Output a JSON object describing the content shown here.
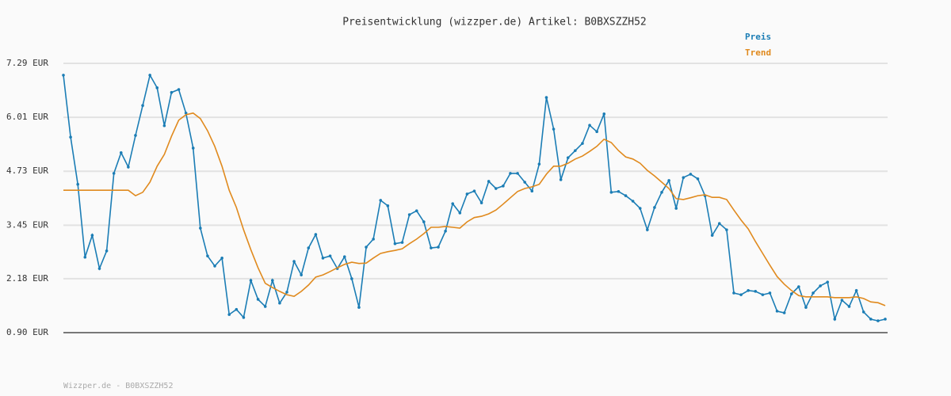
{
  "chart_data": {
    "type": "line",
    "title": "Preisentwicklung (wizzper.de) Artikel: B0BXSZZH52",
    "footer": "Wizzper.de - B0BXSZZH52",
    "ylim": [
      0.9,
      7.29
    ],
    "yticks": [
      {
        "value": 0.9,
        "label": "0.90 EUR"
      },
      {
        "value": 2.18,
        "label": "2.18 EUR"
      },
      {
        "value": 3.45,
        "label": "3.45 EUR"
      },
      {
        "value": 4.73,
        "label": "4.73 EUR"
      },
      {
        "value": 6.01,
        "label": "6.01 EUR"
      },
      {
        "value": 7.29,
        "label": "7.29 EUR"
      }
    ],
    "grid": true,
    "legend": "top-right",
    "series": [
      {
        "name": "Preis",
        "color": "#1b7db5",
        "markers": true,
        "values": [
          7.01,
          5.54,
          4.42,
          2.69,
          3.21,
          2.42,
          2.84,
          4.68,
          5.17,
          4.83,
          5.58,
          6.29,
          7.01,
          6.71,
          5.81,
          6.6,
          6.67,
          6.11,
          5.28,
          3.38,
          2.72,
          2.48,
          2.67,
          1.33,
          1.45,
          1.26,
          2.14,
          1.69,
          1.52,
          2.14,
          1.6,
          1.86,
          2.59,
          2.27,
          2.91,
          3.23,
          2.67,
          2.72,
          2.42,
          2.7,
          2.18,
          1.5,
          2.93,
          3.12,
          4.04,
          3.91,
          3.01,
          3.04,
          3.7,
          3.79,
          3.53,
          2.91,
          2.93,
          3.31,
          3.96,
          3.74,
          4.19,
          4.26,
          3.98,
          4.49,
          4.32,
          4.38,
          4.68,
          4.68,
          4.47,
          4.26,
          4.9,
          6.48,
          5.73,
          4.53,
          5.05,
          5.22,
          5.39,
          5.82,
          5.67,
          6.09,
          4.23,
          4.25,
          4.15,
          4.02,
          3.85,
          3.34,
          3.87,
          4.23,
          4.51,
          3.85,
          4.58,
          4.66,
          4.55,
          4.15,
          3.21,
          3.49,
          3.34,
          1.84,
          1.8,
          1.9,
          1.88,
          1.8,
          1.84,
          1.41,
          1.37,
          1.82,
          1.99,
          1.5,
          1.84,
          2.01,
          2.1,
          1.22,
          1.67,
          1.52,
          1.9,
          1.39,
          1.22,
          1.18,
          1.22
        ]
      },
      {
        "name": "Trend",
        "color": "#e08a1e",
        "markers": false,
        "values": [
          4.28,
          4.28,
          4.28,
          4.28,
          4.28,
          4.28,
          4.28,
          4.28,
          4.28,
          4.28,
          4.15,
          4.23,
          4.47,
          4.85,
          5.13,
          5.56,
          5.94,
          6.07,
          6.11,
          5.98,
          5.69,
          5.32,
          4.85,
          4.28,
          3.87,
          3.34,
          2.87,
          2.44,
          2.07,
          1.97,
          1.88,
          1.8,
          1.76,
          1.88,
          2.03,
          2.22,
          2.27,
          2.35,
          2.44,
          2.52,
          2.57,
          2.54,
          2.55,
          2.67,
          2.78,
          2.82,
          2.85,
          2.89,
          3.01,
          3.12,
          3.25,
          3.4,
          3.4,
          3.42,
          3.4,
          3.38,
          3.53,
          3.63,
          3.66,
          3.72,
          3.81,
          3.95,
          4.1,
          4.25,
          4.32,
          4.36,
          4.42,
          4.66,
          4.85,
          4.85,
          4.92,
          5.02,
          5.09,
          5.2,
          5.32,
          5.49,
          5.41,
          5.22,
          5.07,
          5.02,
          4.92,
          4.75,
          4.62,
          4.47,
          4.32,
          4.08,
          4.06,
          4.1,
          4.15,
          4.17,
          4.11,
          4.11,
          4.06,
          3.81,
          3.57,
          3.36,
          3.06,
          2.78,
          2.5,
          2.23,
          2.05,
          1.9,
          1.78,
          1.75,
          1.75,
          1.75,
          1.75,
          1.73,
          1.73,
          1.73,
          1.75,
          1.71,
          1.63,
          1.61,
          1.54
        ]
      }
    ]
  }
}
